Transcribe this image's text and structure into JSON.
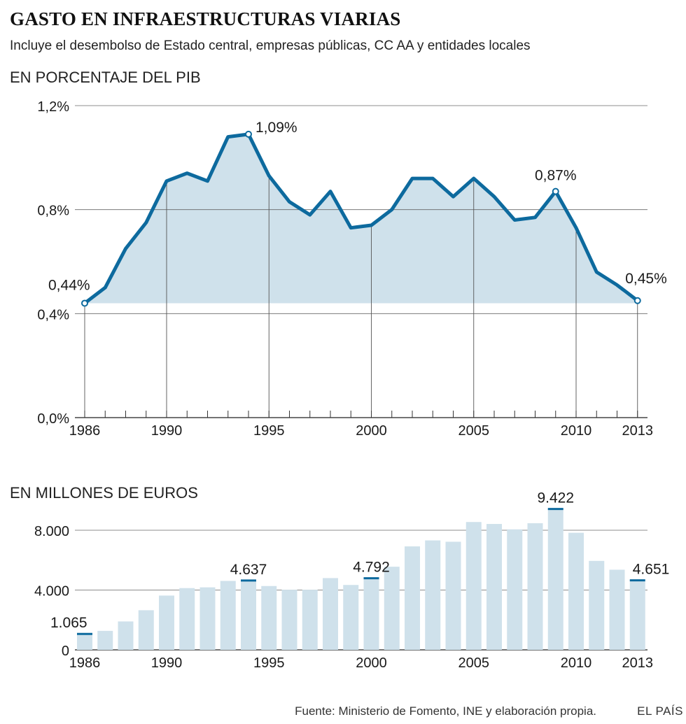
{
  "title": "GASTO EN INFRAESTRUCTURAS VIARIAS",
  "subtitle": "Incluye el desembolso de Estado central, empresas públicas, CC AA y entidades locales",
  "source": "Fuente: Ministerio de Fomento, INE y elaboración propia.",
  "brand": "EL PAÍS",
  "colors": {
    "line": "#0d6a9e",
    "area": "#cfe1eb",
    "bar": "#cfe1eb",
    "marker": "#0d6a9e",
    "grid": "#666666"
  },
  "chart_data": [
    {
      "type": "area",
      "section_label": "EN PORCENTAJE DEL PIB",
      "years": [
        1986,
        1987,
        1988,
        1989,
        1990,
        1991,
        1992,
        1993,
        1994,
        1995,
        1996,
        1997,
        1998,
        1999,
        2000,
        2001,
        2002,
        2003,
        2004,
        2005,
        2006,
        2007,
        2008,
        2009,
        2010,
        2011,
        2012,
        2013
      ],
      "values": [
        0.44,
        0.5,
        0.65,
        0.75,
        0.91,
        0.94,
        0.91,
        1.08,
        1.09,
        0.93,
        0.83,
        0.78,
        0.87,
        0.73,
        0.74,
        0.8,
        0.92,
        0.92,
        0.85,
        0.92,
        0.85,
        0.76,
        0.77,
        0.87,
        0.73,
        0.56,
        0.51,
        0.45
      ],
      "ylim": [
        0,
        1.2
      ],
      "yticks": [
        {
          "value": 1.2,
          "label": "1,2%"
        },
        {
          "value": 0.8,
          "label": "0,8%"
        },
        {
          "value": 0.4,
          "label": "0,4%"
        },
        {
          "value": 0,
          "label": "0,0%"
        }
      ],
      "xticks": [
        {
          "year": 1986,
          "label": "1986"
        },
        {
          "year": 1990,
          "label": "1990"
        },
        {
          "year": 1995,
          "label": "1995"
        },
        {
          "year": 2000,
          "label": "2000"
        },
        {
          "year": 2005,
          "label": "2005"
        },
        {
          "year": 2010,
          "label": "2010"
        },
        {
          "year": 2013,
          "label": "2013"
        }
      ],
      "annotations": [
        {
          "year": 1986,
          "value": 0.44,
          "label": "0,44%",
          "pos": "above"
        },
        {
          "year": 1994,
          "value": 1.09,
          "label": "1,09%",
          "pos": "right"
        },
        {
          "year": 2009,
          "value": 0.87,
          "label": "0,87%",
          "pos": "above"
        },
        {
          "year": 2013,
          "value": 0.45,
          "label": "0,45%",
          "pos": "above"
        }
      ]
    },
    {
      "type": "bar",
      "section_label": "EN MILLONES DE EUROS",
      "years": [
        1986,
        1987,
        1988,
        1989,
        1990,
        1991,
        1992,
        1993,
        1994,
        1995,
        1996,
        1997,
        1998,
        1999,
        2000,
        2001,
        2002,
        2003,
        2004,
        2005,
        2006,
        2007,
        2008,
        2009,
        2010,
        2011,
        2012,
        2013
      ],
      "values": [
        1065,
        1270,
        1900,
        2650,
        3630,
        4130,
        4180,
        4610,
        4637,
        4270,
        4020,
        4020,
        4800,
        4340,
        4792,
        5560,
        6920,
        7320,
        7230,
        8550,
        8420,
        8060,
        8470,
        9422,
        7830,
        5950,
        5360,
        4651
      ],
      "ylim": [
        0,
        10000
      ],
      "yticks": [
        {
          "value": 8000,
          "label": "8.000"
        },
        {
          "value": 4000,
          "label": "4.000"
        },
        {
          "value": 0,
          "label": "0"
        }
      ],
      "xticks": [
        {
          "year": 1986,
          "label": "1986"
        },
        {
          "year": 1990,
          "label": "1990"
        },
        {
          "year": 1995,
          "label": "1995"
        },
        {
          "year": 2000,
          "label": "2000"
        },
        {
          "year": 2005,
          "label": "2005"
        },
        {
          "year": 2010,
          "label": "2010"
        },
        {
          "year": 2013,
          "label": "2013"
        }
      ],
      "highlighted": [
        {
          "year": 1986,
          "value": 1065,
          "label": "1.065"
        },
        {
          "year": 1994,
          "value": 4637,
          "label": "4.637"
        },
        {
          "year": 2000,
          "value": 4792,
          "label": "4.792"
        },
        {
          "year": 2009,
          "value": 9422,
          "label": "9.422"
        },
        {
          "year": 2013,
          "value": 4651,
          "label": "4.651"
        }
      ]
    }
  ]
}
